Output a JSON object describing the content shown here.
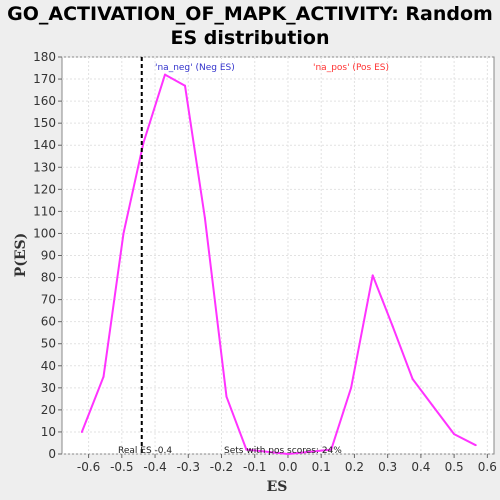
{
  "chart_data": {
    "type": "line",
    "title_line1": "GO_ACTIVATION_OF_MAPK_ACTIVITY: Random",
    "title_line2": "ES distribution",
    "xlabel": "ES",
    "ylabel": "P(ES)",
    "xlim": [
      -0.68,
      0.62
    ],
    "ylim": [
      0,
      180
    ],
    "xticks": [
      -0.6,
      -0.5,
      -0.4,
      -0.3,
      -0.2,
      -0.1,
      0.0,
      0.1,
      0.2,
      0.3,
      0.4,
      0.5,
      0.6
    ],
    "xtick_labels": [
      "-0.6",
      "-0.5",
      "-0.4",
      "-0.3",
      "-0.2",
      "-0.1",
      "0.0",
      "0.1",
      "0.2",
      "0.3",
      "0.4",
      "0.5",
      "0.6"
    ],
    "yticks": [
      0,
      10,
      20,
      30,
      40,
      50,
      60,
      70,
      80,
      90,
      100,
      110,
      120,
      130,
      140,
      150,
      160,
      170,
      180
    ],
    "grid": true,
    "series": [
      {
        "color": "#ff33ff",
        "points": [
          [
            -0.62,
            10
          ],
          [
            -0.555,
            35
          ],
          [
            -0.495,
            100
          ],
          [
            -0.435,
            141
          ],
          [
            -0.37,
            172
          ],
          [
            -0.31,
            167
          ],
          [
            -0.25,
            107
          ],
          [
            -0.185,
            26
          ],
          [
            -0.125,
            2
          ],
          [
            0.0,
            0
          ],
          [
            0.13,
            2
          ],
          [
            0.19,
            30
          ],
          [
            0.255,
            81
          ],
          [
            0.315,
            58
          ],
          [
            0.375,
            34
          ],
          [
            0.435,
            22
          ],
          [
            0.5,
            9
          ],
          [
            0.565,
            4
          ]
        ]
      }
    ],
    "real_es": -0.44,
    "annotations": {
      "neg_label": "'na_neg' (Neg ES)",
      "neg_color": "#3333cc",
      "pos_label": "'na_pos' (Pos ES)",
      "pos_color": "#ff3333",
      "real_es_label": "Real ES -0.4",
      "sets_label": "Sets with pos scores: 24%"
    }
  }
}
